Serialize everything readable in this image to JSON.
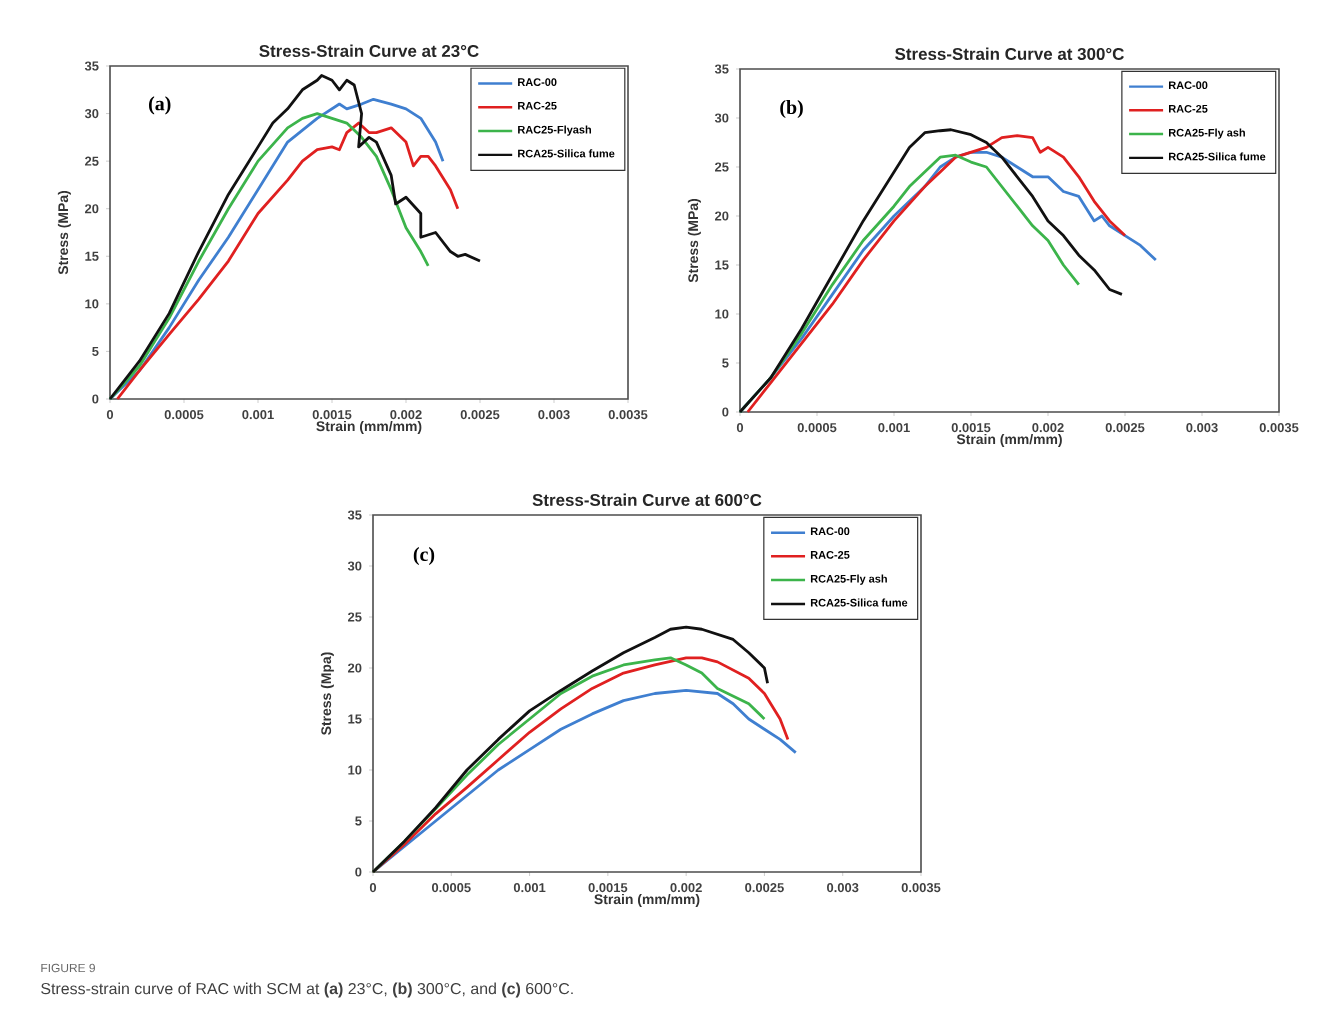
{
  "chart_data": [
    {
      "type": "line",
      "title": "Stress-Strain Curve at 23°C",
      "xlabel": "Strain (mm/mm)",
      "ylabel": "Stress (MPa)",
      "annotations": [
        "(a)"
      ],
      "legend": "top right",
      "xlim": [
        0,
        0.0035
      ],
      "ylim": [
        0,
        35
      ],
      "xticks": [
        0,
        0.0005,
        0.001,
        0.0015,
        0.002,
        0.0025,
        0.003,
        0.0035
      ],
      "yticks": [
        0,
        5,
        10,
        15,
        20,
        25,
        30,
        35
      ],
      "series": [
        {
          "name": "RAC-00",
          "color": "#3f7fd0",
          "x": [
            0,
            0.0002,
            0.0004,
            0.0006,
            0.0008,
            0.001,
            0.0012,
            0.0014,
            0.0015,
            0.00155,
            0.0016,
            0.0017,
            0.00178,
            0.0019,
            0.002,
            0.0021,
            0.0022,
            0.00225
          ],
          "values": [
            0,
            3,
            7.5,
            12.5,
            17,
            22,
            27,
            29.5,
            30.5,
            31,
            30.5,
            31,
            31.5,
            31,
            30.5,
            29.5,
            27,
            25
          ]
        },
        {
          "name": "RAC-25",
          "color": "#e02020",
          "x": [
            5e-05,
            0.0002,
            0.0004,
            0.0006,
            0.0008,
            0.001,
            0.0012,
            0.0013,
            0.0014,
            0.0015,
            0.00155,
            0.0016,
            0.00168,
            0.00175,
            0.0018,
            0.0019,
            0.002,
            0.00205,
            0.0021,
            0.00215,
            0.0022,
            0.0023,
            0.00235
          ],
          "values": [
            0,
            3,
            6.8,
            10.5,
            14.5,
            19.5,
            23,
            25,
            26.2,
            26.5,
            26.2,
            28,
            29,
            28,
            28,
            28.5,
            27,
            24.5,
            25.5,
            25.5,
            24.5,
            22,
            20
          ]
        },
        {
          "name": "RAC25-Flyash",
          "color": "#3cb44b",
          "x": [
            0,
            0.0002,
            0.0004,
            0.0006,
            0.0008,
            0.001,
            0.0012,
            0.0013,
            0.0014,
            0.0015,
            0.0016,
            0.0017,
            0.0018,
            0.0019,
            0.002,
            0.0021,
            0.00215
          ],
          "values": [
            0,
            3.5,
            8.5,
            14.5,
            20,
            25,
            28.5,
            29.5,
            30,
            29.5,
            29,
            27.5,
            25.5,
            22,
            18,
            15.5,
            14
          ]
        },
        {
          "name": "RCA25-Silica fume",
          "color": "#111111",
          "x": [
            0,
            0.0002,
            0.0004,
            0.0006,
            0.0008,
            0.001,
            0.0011,
            0.0012,
            0.0013,
            0.00135,
            0.0014,
            0.00143,
            0.0015,
            0.00155,
            0.0016,
            0.00165,
            0.0017,
            0.00168,
            0.00175,
            0.0018,
            0.0019,
            0.00193,
            0.002,
            0.0021,
            0.0021,
            0.0022,
            0.0023,
            0.00235,
            0.0024,
            0.0025
          ],
          "values": [
            0,
            4,
            9,
            15.5,
            21.5,
            26.5,
            29,
            30.5,
            32.5,
            33,
            33.5,
            34,
            33.5,
            32.5,
            33.5,
            33,
            30,
            26.5,
            27.5,
            27,
            23.5,
            20.5,
            21.2,
            19.5,
            17,
            17.5,
            15.5,
            15,
            15.2,
            14.5
          ]
        }
      ]
    },
    {
      "type": "line",
      "title": "Stress-Strain Curve at 300°C",
      "xlabel": "Strain (mm/mm)",
      "ylabel": "Stress (MPa)",
      "annotations": [
        "(b)"
      ],
      "legend": "top right",
      "xlim": [
        0,
        0.0035
      ],
      "ylim": [
        0,
        35
      ],
      "xticks": [
        0,
        0.0005,
        0.001,
        0.0015,
        0.002,
        0.0025,
        0.003,
        0.0035
      ],
      "yticks": [
        0,
        5,
        10,
        15,
        20,
        25,
        30,
        35
      ],
      "series": [
        {
          "name": "RAC-00",
          "color": "#3f7fd0",
          "x": [
            0,
            0.0002,
            0.0004,
            0.0006,
            0.0008,
            0.001,
            0.0012,
            0.0013,
            0.0014,
            0.0015,
            0.0016,
            0.0017,
            0.0018,
            0.0019,
            0.002,
            0.0021,
            0.0022,
            0.0023,
            0.00235,
            0.0024,
            0.0025,
            0.0026,
            0.0027
          ],
          "values": [
            0,
            3.5,
            7.5,
            12,
            16.5,
            20,
            23,
            25,
            26,
            26.5,
            26.5,
            26,
            25,
            24,
            24,
            22.5,
            22,
            19.5,
            20,
            19,
            18,
            17,
            15.5
          ]
        },
        {
          "name": "RAC-25",
          "color": "#e02020",
          "x": [
            5e-05,
            0.0002,
            0.0004,
            0.0006,
            0.0008,
            0.001,
            0.0012,
            0.0013,
            0.0014,
            0.0015,
            0.0016,
            0.0017,
            0.0018,
            0.0019,
            0.00195,
            0.002,
            0.0021,
            0.0022,
            0.0023,
            0.0024,
            0.0025
          ],
          "values": [
            0,
            3,
            7,
            11,
            15.5,
            19.5,
            23,
            24.5,
            26,
            26.5,
            27,
            28,
            28.2,
            28,
            26.5,
            27,
            26,
            24,
            21.5,
            19.5,
            18
          ]
        },
        {
          "name": "RCA25-Fly ash",
          "color": "#3cb44b",
          "x": [
            0,
            0.0002,
            0.0004,
            0.0006,
            0.0008,
            0.001,
            0.0011,
            0.0012,
            0.0013,
            0.0014,
            0.0015,
            0.0016,
            0.0017,
            0.0018,
            0.0019,
            0.002,
            0.0021,
            0.0022
          ],
          "values": [
            0,
            3.5,
            8,
            13,
            17.5,
            21,
            23,
            24.5,
            26,
            26.2,
            25.5,
            25,
            23,
            21,
            19,
            17.5,
            15,
            13
          ]
        },
        {
          "name": "RCA25-Silica fume",
          "color": "#111111",
          "x": [
            0,
            0.0002,
            0.0004,
            0.0006,
            0.0008,
            0.001,
            0.0011,
            0.0012,
            0.0013,
            0.00137,
            0.0015,
            0.0016,
            0.0017,
            0.0018,
            0.0019,
            0.002,
            0.0021,
            0.0022,
            0.0023,
            0.0024,
            0.00248
          ],
          "values": [
            0,
            3.5,
            8.5,
            14,
            19.5,
            24.5,
            27,
            28.5,
            28.7,
            28.8,
            28.3,
            27.5,
            26,
            24,
            22,
            19.5,
            18,
            16,
            14.5,
            12.5,
            12
          ]
        }
      ]
    },
    {
      "type": "line",
      "title": "Stress-Strain Curve at 600°C",
      "xlabel": "Strain (mm/mm)",
      "ylabel": "Stress (Mpa)",
      "annotations": [
        "(c)",
        "FIGURE 9",
        "Stress-strain curve of RAC with SCM at **(a)** 23°C, **(b)** 300°C, and **(c)** 600°C."
      ],
      "legend": "top right",
      "xlim": [
        0,
        0.0035
      ],
      "ylim": [
        0,
        35
      ],
      "xticks": [
        0,
        0.0005,
        0.001,
        0.0015,
        0.002,
        0.0025,
        0.003,
        0.0035
      ],
      "yticks": [
        0,
        5,
        10,
        15,
        20,
        25,
        30,
        35
      ],
      "series": [
        {
          "name": "RAC-00",
          "color": "#3f7fd0",
          "x": [
            0,
            0.0002,
            0.0004,
            0.0006,
            0.0008,
            0.001,
            0.0012,
            0.0014,
            0.0016,
            0.0018,
            0.002,
            0.0022,
            0.0023,
            0.0024,
            0.0025,
            0.0026,
            0.0027
          ],
          "values": [
            0,
            2.5,
            5,
            7.5,
            10,
            12,
            14,
            15.5,
            16.8,
            17.5,
            17.8,
            17.5,
            16.5,
            15,
            14,
            13,
            11.7
          ]
        },
        {
          "name": "RAC-25",
          "color": "#e02020",
          "x": [
            0,
            0.0002,
            0.0004,
            0.0006,
            0.0008,
            0.001,
            0.0012,
            0.0014,
            0.0016,
            0.0018,
            0.002,
            0.0021,
            0.0022,
            0.0024,
            0.0025,
            0.0026,
            0.00265
          ],
          "values": [
            0,
            2.7,
            5.7,
            8.3,
            11,
            13.7,
            16,
            18,
            19.5,
            20.3,
            21,
            21,
            20.6,
            19,
            17.5,
            15,
            13
          ]
        },
        {
          "name": "RCA25-Fly ash",
          "color": "#3cb44b",
          "x": [
            0,
            0.0002,
            0.0004,
            0.0006,
            0.0008,
            0.001,
            0.0012,
            0.0014,
            0.0016,
            0.0018,
            0.0019,
            0.002,
            0.0021,
            0.0022,
            0.0024,
            0.0025
          ],
          "values": [
            0,
            3,
            6.2,
            9.5,
            12.5,
            15,
            17.5,
            19.2,
            20.3,
            20.8,
            21,
            20.3,
            19.5,
            18,
            16.5,
            15
          ]
        },
        {
          "name": "RCA25-Silica fume",
          "color": "#111111",
          "x": [
            0,
            0.0002,
            0.0004,
            0.0006,
            0.0008,
            0.001,
            0.0012,
            0.0014,
            0.0016,
            0.0018,
            0.0019,
            0.002,
            0.0021,
            0.0022,
            0.0023,
            0.0024,
            0.0025,
            0.00252
          ],
          "values": [
            0,
            3,
            6.3,
            10,
            13,
            15.8,
            17.8,
            19.7,
            21.5,
            23,
            23.8,
            24,
            23.8,
            23.3,
            22.8,
            21.5,
            20,
            18.5
          ]
        }
      ]
    }
  ]
}
